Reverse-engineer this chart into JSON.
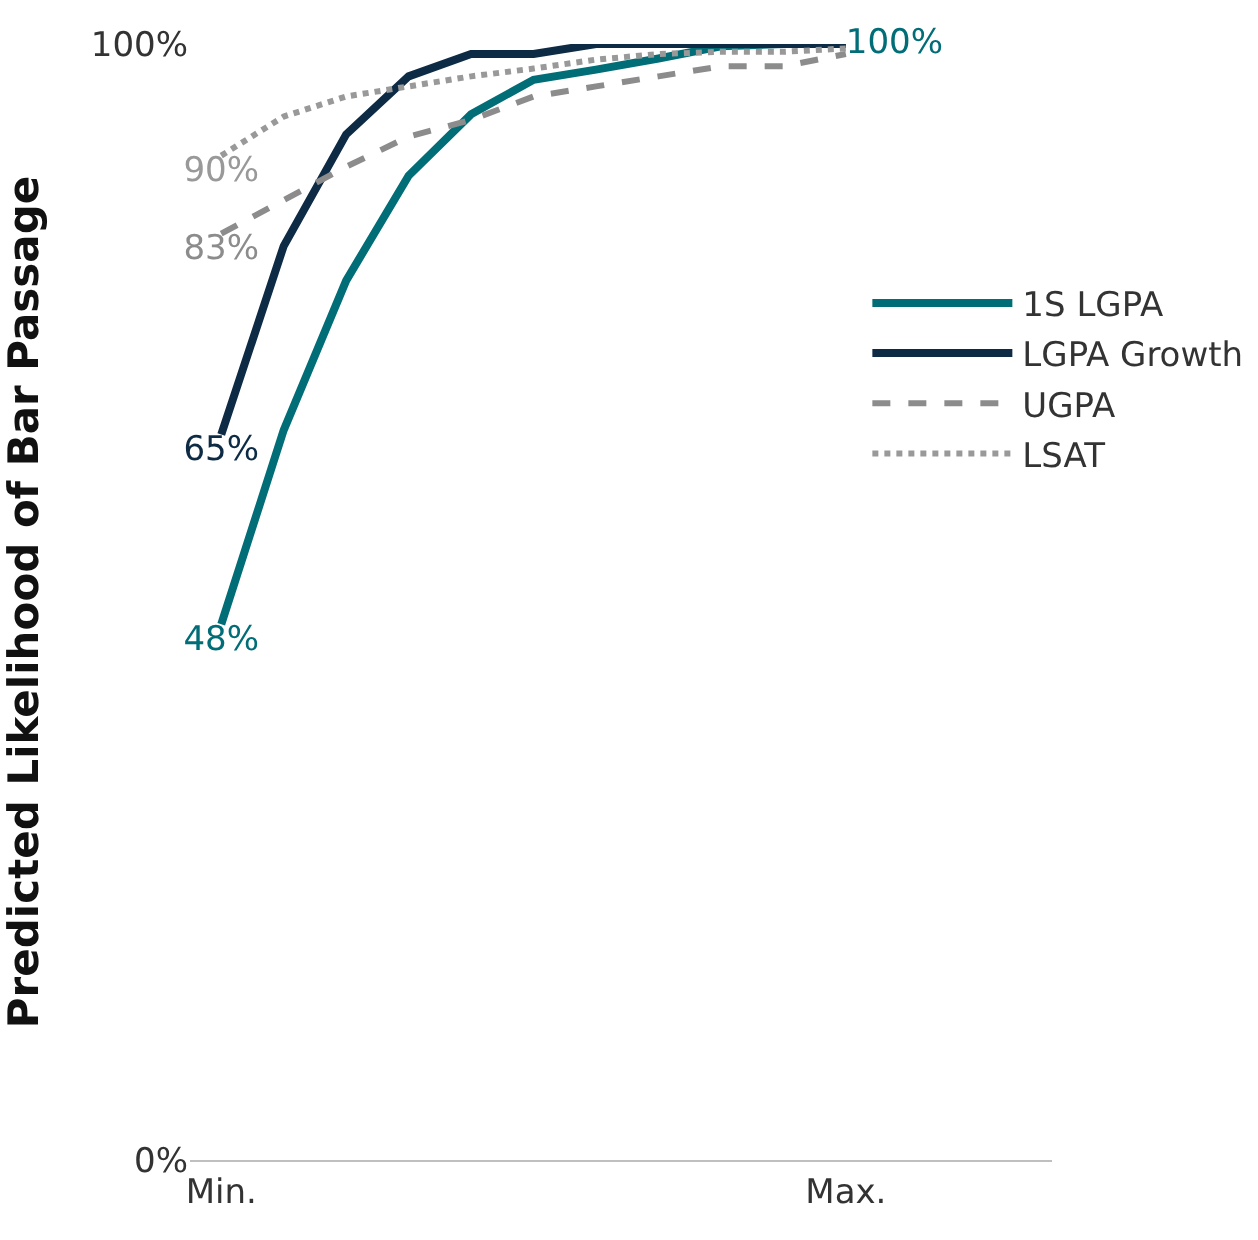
{
  "chart_data": {
    "type": "line",
    "ylabel": "Predicted Likelihood of Bar Passage",
    "categories": [
      "Min.",
      null,
      null,
      null,
      null,
      null,
      null,
      null,
      null,
      null,
      "Max."
    ],
    "ylim": [
      0,
      100
    ],
    "yticks": [
      {
        "value": 0,
        "label": "0%"
      },
      {
        "value": 100,
        "label": "100%"
      }
    ],
    "grid": false,
    "legend": "right",
    "marker": "none",
    "series": [
      {
        "name": "1S LGPA",
        "color": "#006d77",
        "line_style": "solid",
        "values": [
          48,
          65.4,
          78.8,
          88.2,
          93.7,
          96.8,
          97.7,
          98.7,
          99.8,
          100,
          100
        ],
        "value_labels": [
          "48%",
          null,
          null,
          null,
          null,
          null,
          null,
          null,
          null,
          null,
          "100%"
        ]
      },
      {
        "name": "LGPA Growth",
        "color": "#0d2b45",
        "line_style": "solid",
        "values": [
          65,
          81.9,
          91.9,
          97.1,
          99.1,
          99.1,
          100,
          100,
          100,
          100,
          100
        ],
        "value_labels": [
          "65%",
          null,
          null,
          null,
          null,
          null,
          null,
          null,
          null,
          null,
          null
        ]
      },
      {
        "name": "UGPA",
        "color": "#8c8c8c",
        "line_style": "dashed",
        "values": [
          83,
          86,
          89,
          91.7,
          93.2,
          95.3,
          96.2,
          97.1,
          98,
          98,
          99.1
        ],
        "value_labels": [
          "83%",
          null,
          null,
          null,
          null,
          null,
          null,
          null,
          null,
          null,
          null
        ]
      },
      {
        "name": "LSAT",
        "color": "#999999",
        "line_style": "dotted",
        "values": [
          90,
          93.5,
          95.3,
          96.2,
          97.1,
          97.8,
          98.6,
          99.1,
          99.3,
          99.3,
          99.6
        ],
        "value_labels": [
          "90%",
          null,
          null,
          null,
          null,
          null,
          null,
          null,
          null,
          null,
          null
        ]
      }
    ]
  }
}
